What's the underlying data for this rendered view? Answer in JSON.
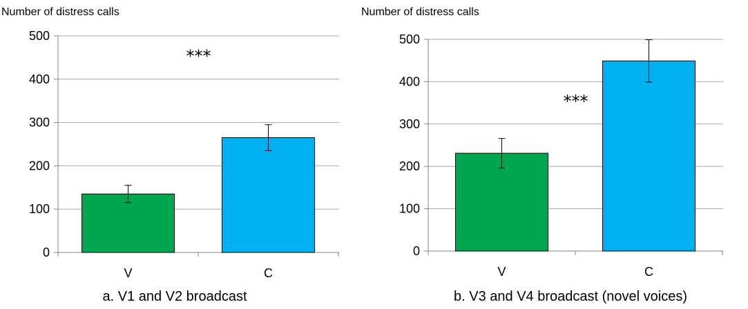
{
  "chart_data": [
    {
      "type": "bar",
      "title": "a. V1 and V2 broadcast",
      "ylabel": "Number of distress calls",
      "xlabel": "",
      "ylim": [
        0,
        500
      ],
      "yticks": [
        0,
        100,
        200,
        300,
        400,
        500
      ],
      "grid": true,
      "categories": [
        "V",
        "C"
      ],
      "values": [
        135,
        265
      ],
      "error": [
        20,
        30
      ],
      "colors": [
        "#00a650",
        "#00b0f0"
      ],
      "annotations": [
        {
          "text": "***",
          "x": 0.5,
          "y": 440
        }
      ]
    },
    {
      "type": "bar",
      "title": "b. V3 and V4 broadcast (novel voices)",
      "ylabel": "Number of distress calls",
      "xlabel": "",
      "ylim": [
        0,
        500
      ],
      "yticks": [
        0,
        100,
        200,
        300,
        400,
        500
      ],
      "grid": true,
      "categories": [
        "V",
        "C"
      ],
      "values": [
        231,
        449
      ],
      "error": [
        35,
        50
      ],
      "colors": [
        "#00a650",
        "#00b0f0"
      ],
      "annotations": [
        {
          "text": "***",
          "x": 0.5,
          "y": 340
        }
      ]
    }
  ]
}
